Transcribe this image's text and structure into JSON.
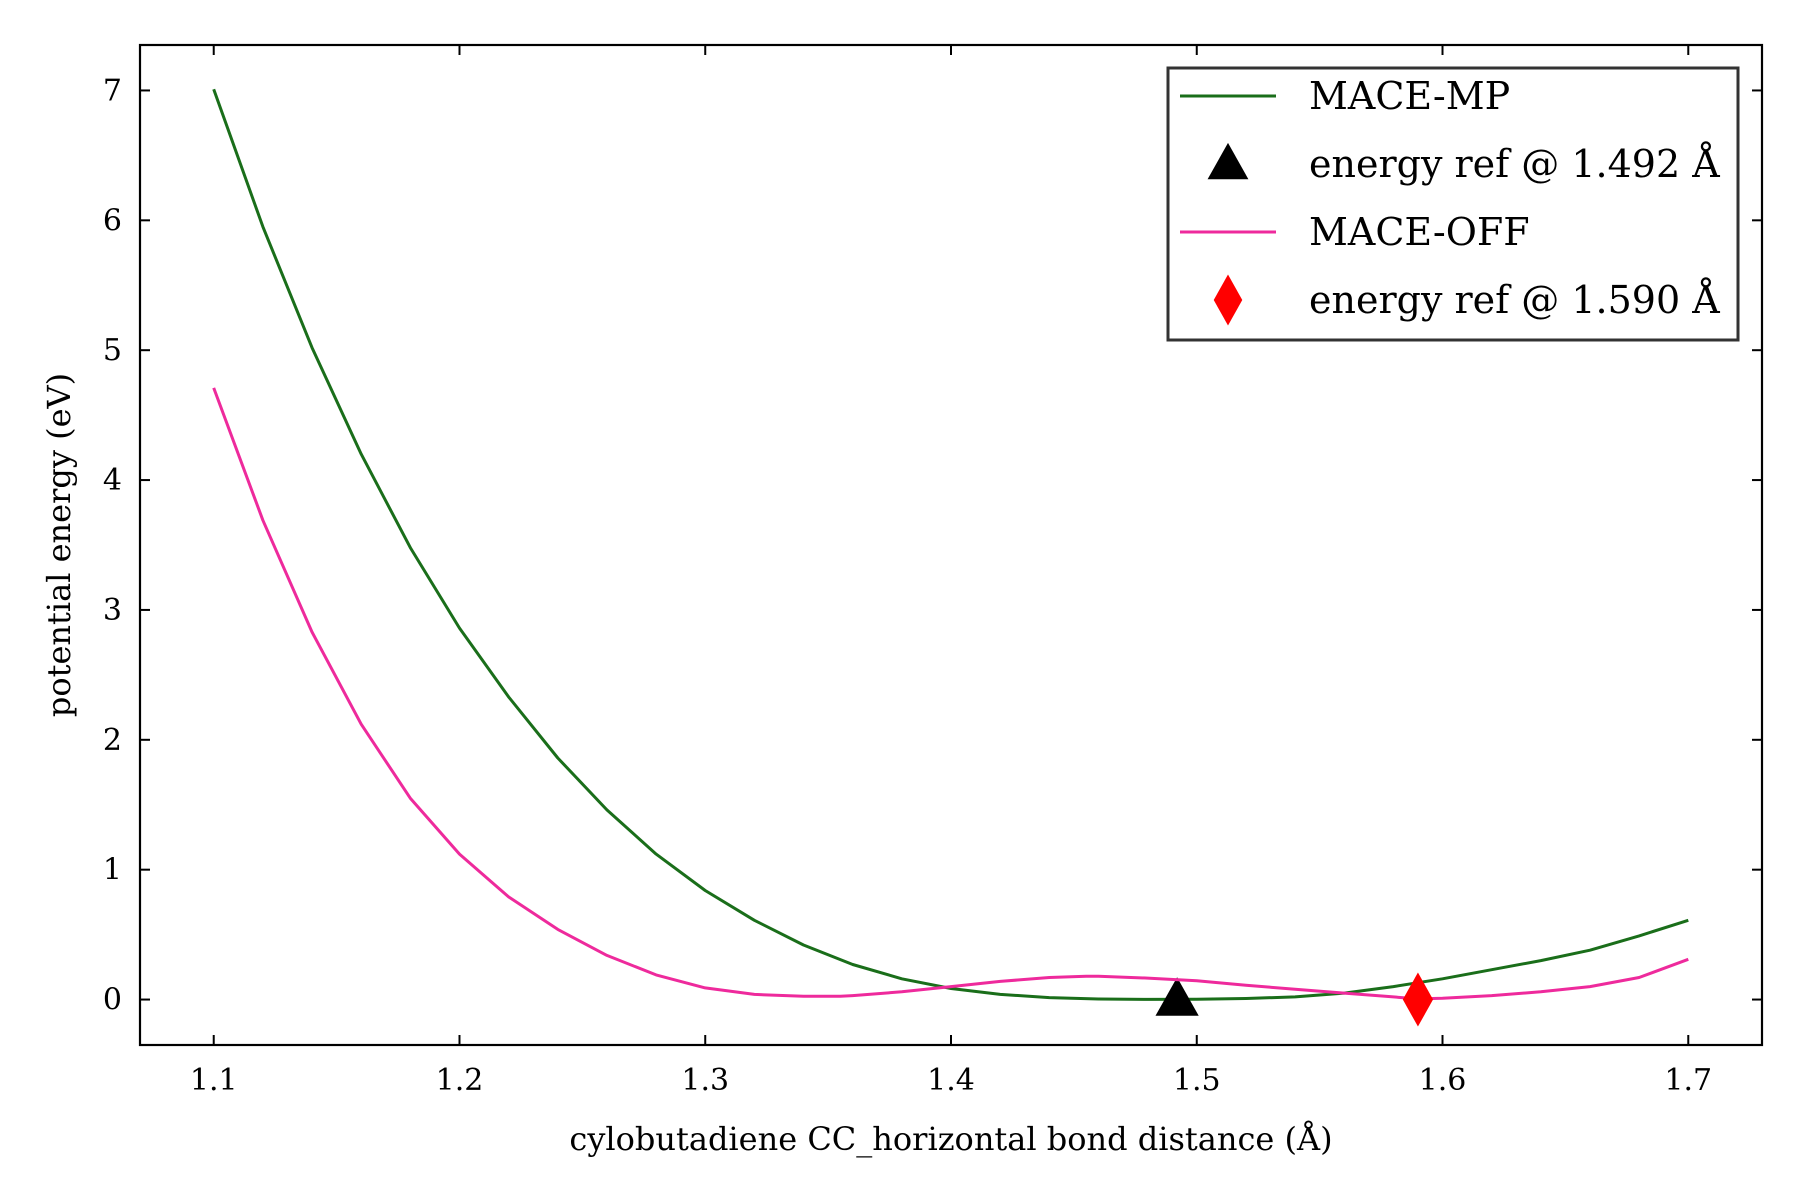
{
  "chart_data": {
    "type": "line",
    "title": "",
    "xlabel": "cylobutadiene CC_horizontal bond distance (Å)",
    "ylabel": "potential energy (eV)",
    "xlim": [
      1.07,
      1.73
    ],
    "ylim": [
      -0.35,
      7.35
    ],
    "xticks": [
      1.1,
      1.2,
      1.3,
      1.4,
      1.5,
      1.6,
      1.7
    ],
    "xtick_labels": [
      "1.1",
      "1.2",
      "1.3",
      "1.4",
      "1.5",
      "1.6",
      "1.7"
    ],
    "yticks": [
      0,
      1,
      2,
      3,
      4,
      5,
      6,
      7
    ],
    "ytick_labels": [
      "0",
      "1",
      "2",
      "3",
      "4",
      "5",
      "6",
      "7"
    ],
    "grid": false,
    "legend_position": "top-right",
    "series": [
      {
        "name": "MACE-MP",
        "kind": "line",
        "color": "#1a6e1a",
        "x": [
          1.1,
          1.12,
          1.14,
          1.16,
          1.18,
          1.2,
          1.22,
          1.24,
          1.26,
          1.28,
          1.3,
          1.32,
          1.34,
          1.36,
          1.38,
          1.4,
          1.42,
          1.44,
          1.46,
          1.48,
          1.5,
          1.52,
          1.54,
          1.56,
          1.58,
          1.6,
          1.62,
          1.64,
          1.66,
          1.68,
          1.7
        ],
        "y": [
          7.01,
          5.95,
          5.02,
          4.2,
          3.48,
          2.86,
          2.33,
          1.86,
          1.46,
          1.12,
          0.84,
          0.61,
          0.42,
          0.27,
          0.16,
          0.085,
          0.04,
          0.015,
          0.004,
          0.001,
          0.002,
          0.008,
          0.02,
          0.05,
          0.1,
          0.16,
          0.23,
          0.3,
          0.38,
          0.49,
          0.61
        ]
      },
      {
        "name": "energy ref @ 1.492 Å",
        "kind": "marker",
        "marker": "triangle",
        "color": "#000000",
        "x": [
          1.492
        ],
        "y": [
          0.0
        ]
      },
      {
        "name": "MACE-OFF",
        "kind": "line",
        "color": "#ee2a9c",
        "x": [
          1.1,
          1.12,
          1.14,
          1.16,
          1.18,
          1.2,
          1.22,
          1.24,
          1.26,
          1.28,
          1.3,
          1.32,
          1.34,
          1.355,
          1.36,
          1.38,
          1.4,
          1.42,
          1.44,
          1.455,
          1.46,
          1.48,
          1.5,
          1.52,
          1.54,
          1.56,
          1.58,
          1.59,
          1.6,
          1.62,
          1.64,
          1.66,
          1.68,
          1.7
        ],
        "y": [
          4.71,
          3.69,
          2.83,
          2.12,
          1.55,
          1.12,
          0.79,
          0.54,
          0.34,
          0.19,
          0.09,
          0.04,
          0.025,
          0.025,
          0.03,
          0.06,
          0.1,
          0.14,
          0.17,
          0.18,
          0.18,
          0.165,
          0.145,
          0.11,
          0.08,
          0.05,
          0.02,
          0.005,
          0.01,
          0.03,
          0.06,
          0.1,
          0.17,
          0.31
        ]
      },
      {
        "name": "energy ref @ 1.590 Å",
        "kind": "marker",
        "marker": "diamond",
        "color": "#ff0000",
        "x": [
          1.59
        ],
        "y": [
          0.0
        ]
      }
    ]
  }
}
